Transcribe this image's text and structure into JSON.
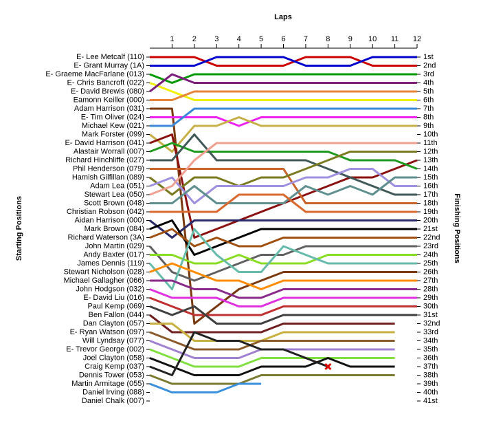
{
  "chart_data": {
    "type": "line",
    "title": "Laps",
    "y_label": "Starting Positions",
    "y2_label": "Finishing Positions",
    "x": [
      0,
      1,
      2,
      3,
      4,
      5,
      6,
      7,
      8,
      9,
      10,
      11,
      12
    ],
    "xlim": [
      0,
      12
    ],
    "xticks": [
      1,
      2,
      3,
      4,
      5,
      6,
      7,
      8,
      9,
      10,
      11,
      12
    ],
    "ylim": [
      1,
      41
    ],
    "y_inverted": true,
    "y2ticks": [
      {
        "value": 1,
        "label": "1st"
      },
      {
        "value": 2,
        "label": "2nd"
      },
      {
        "value": 3,
        "label": "3rd"
      },
      {
        "value": 4,
        "label": "4th"
      },
      {
        "value": 5,
        "label": "5th"
      },
      {
        "value": 6,
        "label": "6th"
      },
      {
        "value": 7,
        "label": "7th"
      },
      {
        "value": 8,
        "label": "8th"
      },
      {
        "value": 9,
        "label": "9th"
      },
      {
        "value": 10,
        "label": "10th"
      },
      {
        "value": 11,
        "label": "11th"
      },
      {
        "value": 12,
        "label": "12th"
      },
      {
        "value": 13,
        "label": "13th"
      },
      {
        "value": 14,
        "label": "14th"
      },
      {
        "value": 15,
        "label": "15th"
      },
      {
        "value": 16,
        "label": "16th"
      },
      {
        "value": 17,
        "label": "17th"
      },
      {
        "value": 18,
        "label": "18th"
      },
      {
        "value": 19,
        "label": "19th"
      },
      {
        "value": 20,
        "label": "20th"
      },
      {
        "value": 21,
        "label": "21st"
      },
      {
        "value": 22,
        "label": "22nd"
      },
      {
        "value": 23,
        "label": "23rd"
      },
      {
        "value": 24,
        "label": "24th"
      },
      {
        "value": 25,
        "label": "25th"
      },
      {
        "value": 26,
        "label": "26th"
      },
      {
        "value": 27,
        "label": "27th"
      },
      {
        "value": 28,
        "label": "28th"
      },
      {
        "value": 29,
        "label": "29th"
      },
      {
        "value": 30,
        "label": "30th"
      },
      {
        "value": 31,
        "label": "31st"
      },
      {
        "value": 32,
        "label": "32nd"
      },
      {
        "value": 33,
        "label": "33rd"
      },
      {
        "value": 34,
        "label": "34th"
      },
      {
        "value": 35,
        "label": "35th"
      },
      {
        "value": 36,
        "label": "36th"
      },
      {
        "value": 37,
        "label": "37th"
      },
      {
        "value": 38,
        "label": "38th"
      },
      {
        "value": 39,
        "label": "39th"
      },
      {
        "value": 40,
        "label": "40th"
      },
      {
        "value": 41,
        "label": "41st"
      }
    ],
    "series": [
      {
        "name": "E- Lee Metcalf (110)",
        "color": "#cc0000",
        "values": [
          1,
          1,
          1,
          2,
          2,
          2,
          2,
          1,
          1,
          1,
          2,
          2,
          2
        ]
      },
      {
        "name": "E- Grant Murray (1A)",
        "color": "#0000cc",
        "values": [
          2,
          2,
          2,
          1,
          1,
          1,
          1,
          2,
          2,
          2,
          1,
          1,
          1
        ]
      },
      {
        "name": "E- Graeme MacFarlane (013)",
        "color": "#009900",
        "values": [
          3,
          4,
          3,
          3,
          3,
          3,
          3,
          3,
          3,
          3,
          3,
          3,
          3
        ]
      },
      {
        "name": "E- Chris Bancroft (022)",
        "color": "#f0f000",
        "values": [
          4,
          5,
          6,
          6,
          6,
          6,
          6,
          6,
          6,
          6,
          6,
          6,
          6
        ]
      },
      {
        "name": "E- David Brewis (080)",
        "color": "#7b1f7b",
        "values": [
          5,
          3,
          4,
          4,
          4,
          4,
          4,
          4,
          4,
          4,
          4,
          4,
          4
        ]
      },
      {
        "name": "Eamonn Keiller (000)",
        "color": "#e8843a",
        "values": [
          6,
          6,
          5,
          5,
          5,
          5,
          5,
          5,
          5,
          5,
          5,
          5,
          5
        ]
      },
      {
        "name": "Adam Harrison (031)",
        "color": "#7a3a10",
        "values": [
          7,
          7,
          32,
          30,
          28,
          27,
          26,
          26,
          26,
          26,
          26,
          26,
          26
        ]
      },
      {
        "name": "E- Tim Oliver (024)",
        "color": "#ee22ee",
        "values": [
          8,
          8,
          8,
          8,
          9,
          8,
          8,
          8,
          8,
          8,
          8,
          8,
          8
        ]
      },
      {
        "name": "Michael Kew (021)",
        "color": "#3a88d8",
        "values": [
          9,
          9,
          7,
          7,
          7,
          7,
          7,
          7,
          7,
          7,
          7,
          7,
          7
        ]
      },
      {
        "name": "Mark Forster (099)",
        "color": "#c8b048",
        "values": [
          10,
          12,
          9,
          9,
          8,
          9,
          9,
          9,
          9,
          9,
          9,
          9,
          9
        ]
      },
      {
        "name": "E- David Harrison (041)",
        "color": "#8b1010",
        "values": [
          11,
          10,
          22,
          21,
          20,
          19,
          18,
          17,
          16,
          15,
          15,
          14,
          13
        ]
      },
      {
        "name": "Alastair Worrall (007)",
        "color": "#1e9a1e",
        "values": [
          12,
          11,
          12,
          12,
          12,
          12,
          12,
          12,
          12,
          13,
          13,
          13,
          14
        ]
      },
      {
        "name": "Richard Hinchliffe (027)",
        "color": "#405858",
        "values": [
          13,
          13,
          10,
          13,
          13,
          13,
          13,
          13,
          14,
          15,
          16,
          17,
          17
        ]
      },
      {
        "name": "Phil Henderson (079)",
        "color": "#c8642a",
        "values": [
          14,
          14,
          14,
          14,
          14,
          14,
          14,
          18,
          18,
          18,
          18,
          18,
          18
        ]
      },
      {
        "name": "Hamish Gilfillan (089)",
        "color": "#7a7a20",
        "values": [
          15,
          17,
          15,
          15,
          16,
          15,
          15,
          14,
          13,
          12,
          12,
          12,
          12
        ]
      },
      {
        "name": "Adam Lea (051)",
        "color": "#a090e0",
        "values": [
          16,
          15,
          18,
          16,
          16,
          16,
          16,
          15,
          15,
          14,
          14,
          16,
          16
        ]
      },
      {
        "name": "Stewart Lea (050)",
        "color": "#f0a090",
        "values": [
          17,
          16,
          13,
          11,
          11,
          11,
          11,
          11,
          11,
          11,
          11,
          11,
          11
        ]
      },
      {
        "name": "Scott Brown (048)",
        "color": "#5f8f8f",
        "values": [
          18,
          18,
          16,
          18,
          18,
          18,
          18,
          16,
          17,
          16,
          17,
          15,
          15
        ]
      },
      {
        "name": "Christian Robson (042)",
        "color": "#d86a30",
        "values": [
          19,
          19,
          19,
          19,
          17,
          17,
          17,
          19,
          19,
          19,
          19,
          19,
          19
        ]
      },
      {
        "name": "Aidan Harrison (000)",
        "color": "#2a2a6a",
        "values": [
          20,
          22,
          20,
          20,
          20,
          20,
          20,
          20,
          20,
          20,
          20,
          20,
          20
        ]
      },
      {
        "name": "Mark Brown (084)",
        "color": "#000000",
        "values": [
          21,
          20,
          24,
          23,
          22,
          21,
          21,
          21,
          21,
          21,
          21,
          21,
          21
        ]
      },
      {
        "name": "Richard Waterson (3A)",
        "color": "#a05010",
        "values": [
          22,
          21,
          23,
          22,
          23,
          23,
          22,
          22,
          22,
          22,
          22,
          22,
          22
        ]
      },
      {
        "name": "John Martin (029)",
        "color": "#606060",
        "values": [
          23,
          26,
          27,
          26,
          25,
          24,
          24,
          23,
          23,
          23,
          23,
          23,
          23
        ]
      },
      {
        "name": "Andy Baxter (017)",
        "color": "#88dd22",
        "values": [
          24,
          24,
          25,
          25,
          24,
          25,
          25,
          25,
          24,
          24,
          24,
          24,
          24
        ]
      },
      {
        "name": "James Dennis (119)",
        "color": "#66bbaa",
        "values": [
          25,
          28,
          21,
          24,
          26,
          26,
          23,
          24,
          25,
          25,
          25,
          25,
          25
        ]
      },
      {
        "name": "Stewart Nicholson (028)",
        "color": "#ff8c00",
        "values": [
          26,
          25,
          26,
          27,
          27,
          28,
          27,
          27,
          27,
          27,
          27,
          27,
          27
        ]
      },
      {
        "name": "Michael Gallagher (066)",
        "color": "#8a2a8a",
        "values": [
          27,
          27,
          28,
          28,
          29,
          29,
          28,
          28,
          28,
          28,
          28,
          28,
          28
        ]
      },
      {
        "name": "John Hodgson (032)",
        "color": "#e030e0",
        "values": [
          28,
          29,
          29,
          29,
          30,
          30,
          29,
          29,
          29,
          29,
          29,
          29,
          29
        ]
      },
      {
        "name": "E- David Liu (016)",
        "color": "#c03030",
        "values": [
          29,
          30,
          31,
          31,
          31,
          31,
          30,
          30,
          30,
          30,
          30,
          30,
          30
        ]
      },
      {
        "name": "Paul Kemp (069)",
        "color": "#404040",
        "values": [
          30,
          31,
          30,
          32,
          32,
          32,
          31,
          31,
          31,
          31,
          31,
          31,
          31
        ]
      },
      {
        "name": "Ben Fallon (044)",
        "color": "#702020",
        "values": [
          31,
          33,
          33,
          33,
          33,
          33,
          32,
          32,
          32,
          32,
          32,
          32,
          null
        ]
      },
      {
        "name": "Dan Clayton (057)",
        "color": "#c8b040",
        "values": [
          32,
          32,
          34,
          34,
          34,
          34,
          33,
          33,
          33,
          33,
          33,
          33,
          null
        ]
      },
      {
        "name": "E- Ryan Watson (097)",
        "color": "#8b5a2b",
        "values": [
          33,
          34,
          35,
          35,
          35,
          34,
          34,
          34,
          34,
          34,
          34,
          34,
          null
        ]
      },
      {
        "name": "Will Lyndsay (077)",
        "color": "#a080d0",
        "values": [
          34,
          35,
          36,
          36,
          36,
          35,
          35,
          35,
          35,
          35,
          35,
          35,
          null
        ]
      },
      {
        "name": "E- Trevor George (002)",
        "color": "#80e040",
        "values": [
          35,
          36,
          37,
          37,
          37,
          36,
          36,
          36,
          36,
          36,
          36,
          36,
          null
        ]
      },
      {
        "name": "Joel Clayton (058)",
        "color": "#111111",
        "values": [
          36,
          37,
          38,
          38,
          38,
          37,
          37,
          37,
          36,
          37,
          37,
          37,
          null
        ]
      },
      {
        "name": "Craig Kemp (037)",
        "color": "#222222",
        "values": [
          37,
          38,
          33,
          34,
          34,
          35,
          35,
          36,
          37,
          null,
          null,
          null,
          null
        ],
        "end_marker": "x"
      },
      {
        "name": "Dennis Tower (053)",
        "color": "#7a7a30",
        "values": [
          38,
          39,
          39,
          39,
          39,
          38,
          38,
          38,
          38,
          38,
          38,
          38,
          null
        ]
      },
      {
        "name": "Martin Armitage (055)",
        "color": "#3a90dd",
        "values": [
          39,
          40,
          40,
          40,
          39,
          39,
          null,
          null,
          null,
          null,
          null,
          null,
          null
        ]
      },
      {
        "name": "Daniel Irving (088)",
        "color": "#999999",
        "values": [
          40,
          null,
          null,
          null,
          null,
          null,
          null,
          null,
          null,
          null,
          null,
          null,
          null
        ]
      },
      {
        "name": "Daniel Chalk (007)",
        "color": "#999999",
        "values": [
          41,
          null,
          null,
          null,
          null,
          null,
          null,
          null,
          null,
          null,
          null,
          null,
          null
        ]
      }
    ]
  }
}
